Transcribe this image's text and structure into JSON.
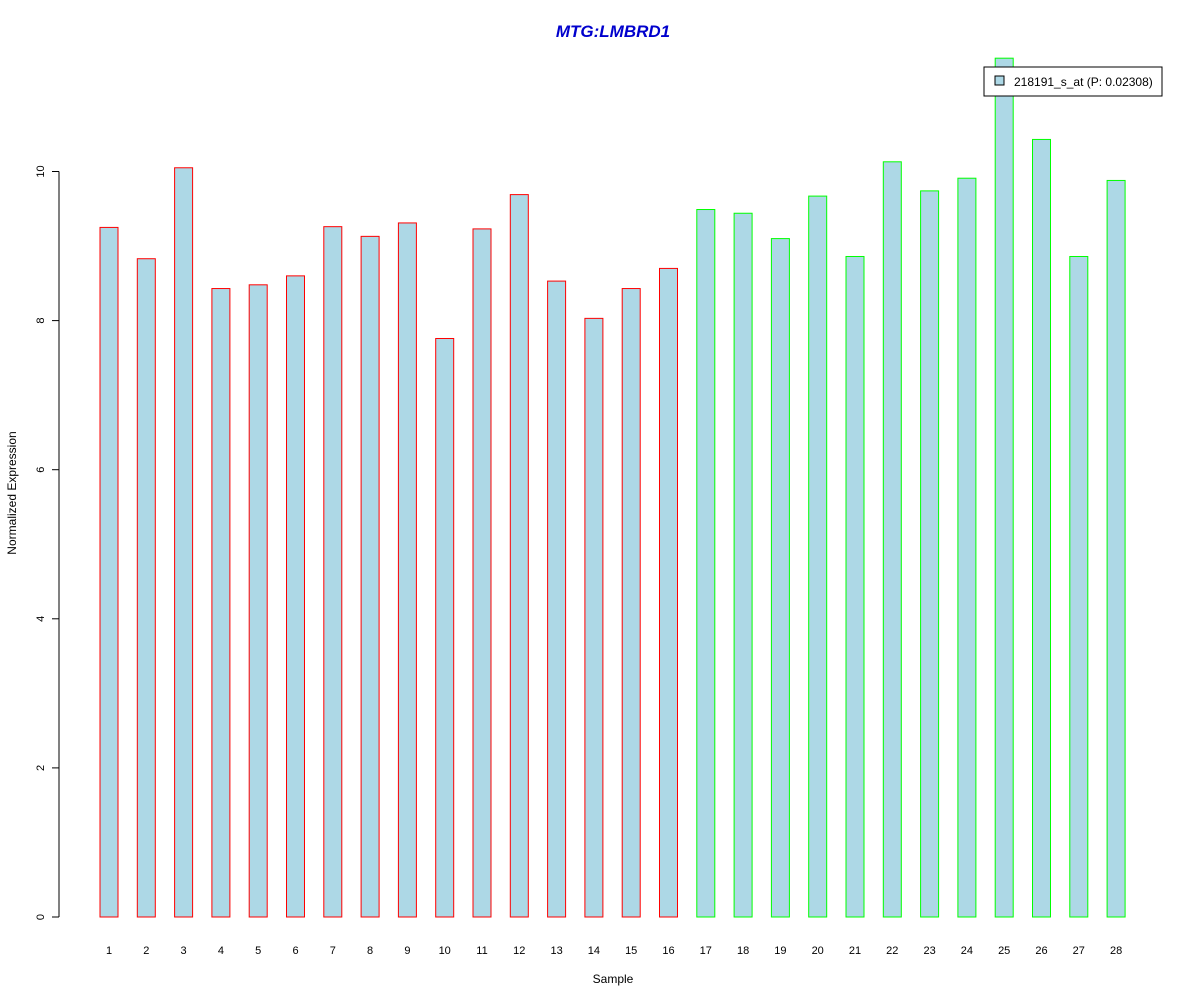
{
  "chart_data": {
    "type": "bar",
    "title": "MTG:LMBRD1",
    "xlabel": "Sample",
    "ylabel": "Normalized Expression",
    "ylim": [
      0,
      11.5
    ],
    "yticks": [
      0,
      2,
      4,
      6,
      8,
      10
    ],
    "categories": [
      "1",
      "2",
      "3",
      "4",
      "5",
      "6",
      "7",
      "8",
      "9",
      "10",
      "11",
      "12",
      "13",
      "14",
      "15",
      "16",
      "17",
      "18",
      "19",
      "20",
      "21",
      "22",
      "23",
      "24",
      "25",
      "26",
      "27",
      "28"
    ],
    "series": [
      {
        "name": "218191_s_at (P: 0.02308)",
        "values": [
          9.25,
          8.83,
          10.05,
          8.43,
          8.48,
          8.6,
          9.26,
          9.13,
          9.31,
          7.76,
          9.23,
          9.69,
          8.53,
          8.03,
          8.43,
          8.7,
          9.49,
          9.44,
          9.1,
          9.67,
          8.86,
          10.13,
          9.74,
          9.91,
          11.52,
          10.43,
          8.86,
          9.88
        ]
      }
    ],
    "groups": [
      1,
      1,
      1,
      1,
      1,
      1,
      1,
      1,
      1,
      1,
      1,
      1,
      1,
      1,
      1,
      1,
      2,
      2,
      2,
      2,
      2,
      2,
      2,
      2,
      2,
      2,
      2,
      2
    ],
    "legend": {
      "position": "top-right",
      "label": "218191_s_at (P: 0.02308)"
    },
    "colors": {
      "bar_fill": "#add8e6",
      "group1_border": "#ff0000",
      "group2_border": "#00ff00",
      "title": "#0000cd",
      "axis": "#000000"
    },
    "grid": false
  }
}
